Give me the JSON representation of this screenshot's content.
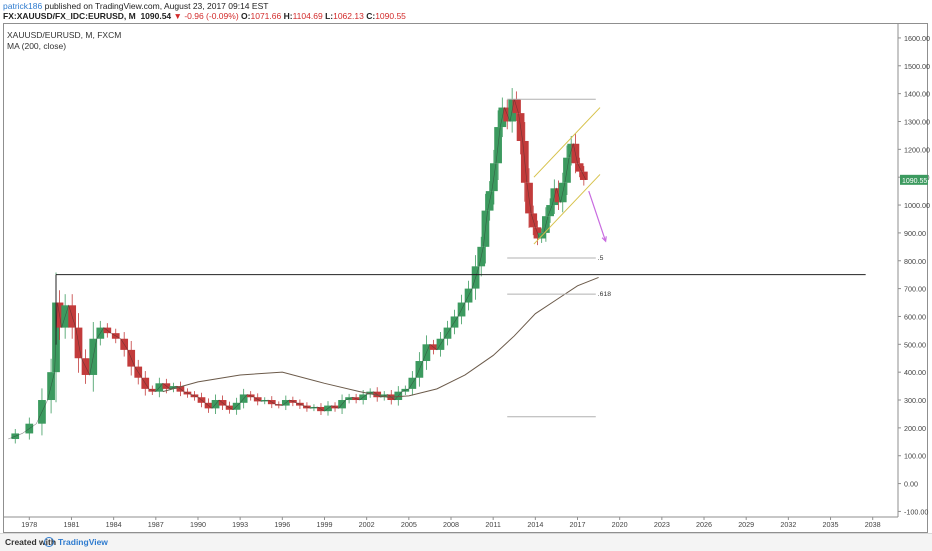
{
  "header": {
    "user": "patrick186",
    "published_text": "published on TradingView.com, August 23, 2017 09:14 EST",
    "symbol_line": "FX:XAUUSD/FX_IDC:EURUSD, M",
    "last": "1090.54",
    "change": "▼ -0.96 (-0.09%)",
    "open_label": "O:",
    "open": "1071.66",
    "high_label": "H:",
    "high": "1104.69",
    "low_label": "L:",
    "low": "1062.13",
    "close_label": "C:",
    "close": "1090.55"
  },
  "legend": {
    "symbol": "XAUUSD/EURUSD, M, FXCM",
    "indicator": "MA (200, close)"
  },
  "footer": {
    "created_with": "Created with",
    "brand": "TradingView"
  },
  "colors": {
    "up": "#3c9a5f",
    "down": "#c23b3b",
    "ma": "#6b5a4a",
    "channel": "#d7c24a",
    "arrow": "#c86be0",
    "level": "#b0b0b0",
    "price_badge": "#3c9a5f"
  },
  "chart_data": {
    "type": "candlestick",
    "x_tick_labels": [
      "1978",
      "1981",
      "1984",
      "1987",
      "1990",
      "1993",
      "1996",
      "1999",
      "2002",
      "2005",
      "2008",
      "2011",
      "2014",
      "2017",
      "2020",
      "2023",
      "2026",
      "2029",
      "2032",
      "2035",
      "2038"
    ],
    "y_tick_labels": [
      "1600.00",
      "1500.00",
      "1400.00",
      "1300.00",
      "1200.00",
      "1100.00",
      "1000.00",
      "900.00",
      "800.00",
      "700.00",
      "600.00",
      "500.00",
      "400.00",
      "300.00",
      "200.00",
      "100.00",
      "0.00",
      "-100.00"
    ],
    "xlim": [
      1976.2,
      2039.8
    ],
    "ylim": [
      -120,
      1650
    ],
    "current_price": "1090.55",
    "price_path": [
      [
        1976.5,
        160
      ],
      [
        1977.5,
        180
      ],
      [
        1978.5,
        215
      ],
      [
        1979.3,
        300
      ],
      [
        1979.8,
        400
      ],
      [
        1980.0,
        650
      ],
      [
        1980.3,
        560
      ],
      [
        1980.8,
        640
      ],
      [
        1981.3,
        560
      ],
      [
        1981.7,
        450
      ],
      [
        1982.3,
        390
      ],
      [
        1982.8,
        520
      ],
      [
        1983.3,
        560
      ],
      [
        1983.8,
        540
      ],
      [
        1984.5,
        520
      ],
      [
        1985.0,
        480
      ],
      [
        1985.5,
        420
      ],
      [
        1986.0,
        380
      ],
      [
        1986.5,
        340
      ],
      [
        1987.0,
        330
      ],
      [
        1987.5,
        360
      ],
      [
        1988.0,
        340
      ],
      [
        1988.5,
        350
      ],
      [
        1989.0,
        330
      ],
      [
        1989.5,
        320
      ],
      [
        1990.0,
        310
      ],
      [
        1990.5,
        290
      ],
      [
        1991.0,
        270
      ],
      [
        1991.5,
        300
      ],
      [
        1992.0,
        280
      ],
      [
        1992.5,
        265
      ],
      [
        1993.0,
        290
      ],
      [
        1993.5,
        320
      ],
      [
        1994.0,
        310
      ],
      [
        1994.5,
        295
      ],
      [
        1995.0,
        300
      ],
      [
        1995.5,
        285
      ],
      [
        1996.0,
        280
      ],
      [
        1996.5,
        300
      ],
      [
        1997.0,
        290
      ],
      [
        1997.5,
        280
      ],
      [
        1998.0,
        270
      ],
      [
        1998.5,
        275
      ],
      [
        1999.0,
        260
      ],
      [
        1999.5,
        280
      ],
      [
        2000.0,
        270
      ],
      [
        2000.5,
        300
      ],
      [
        2001.0,
        310
      ],
      [
        2001.5,
        300
      ],
      [
        2002.0,
        320
      ],
      [
        2002.5,
        330
      ],
      [
        2003.0,
        310
      ],
      [
        2003.5,
        320
      ],
      [
        2004.0,
        300
      ],
      [
        2004.5,
        330
      ],
      [
        2005.0,
        340
      ],
      [
        2005.5,
        380
      ],
      [
        2006.0,
        440
      ],
      [
        2006.5,
        500
      ],
      [
        2007.0,
        480
      ],
      [
        2007.5,
        520
      ],
      [
        2008.0,
        560
      ],
      [
        2008.5,
        600
      ],
      [
        2009.0,
        650
      ],
      [
        2009.5,
        700
      ],
      [
        2010.0,
        780
      ],
      [
        2010.3,
        850
      ],
      [
        2010.6,
        980
      ],
      [
        2010.9,
        1050
      ],
      [
        2011.2,
        1150
      ],
      [
        2011.5,
        1280
      ],
      [
        2011.8,
        1350
      ],
      [
        2012.2,
        1300
      ],
      [
        2012.5,
        1380
      ],
      [
        2012.8,
        1330
      ],
      [
        2013.1,
        1230
      ],
      [
        2013.4,
        1080
      ],
      [
        2013.7,
        970
      ],
      [
        2014.0,
        920
      ],
      [
        2014.3,
        880
      ],
      [
        2014.6,
        900
      ],
      [
        2014.9,
        960
      ],
      [
        2015.2,
        1000
      ],
      [
        2015.5,
        1060
      ],
      [
        2015.8,
        1010
      ],
      [
        2016.1,
        1080
      ],
      [
        2016.4,
        1170
      ],
      [
        2016.7,
        1220
      ],
      [
        2017.0,
        1150
      ],
      [
        2017.3,
        1120
      ],
      [
        2017.6,
        1090
      ]
    ],
    "ma_path": [
      [
        1987.5,
        330
      ],
      [
        1990.0,
        365
      ],
      [
        1993.0,
        390
      ],
      [
        1996.0,
        400
      ],
      [
        1999.0,
        360
      ],
      [
        2001.5,
        330
      ],
      [
        2003.5,
        310
      ],
      [
        2005.0,
        315
      ],
      [
        2007.0,
        340
      ],
      [
        2009.0,
        390
      ],
      [
        2011.0,
        460
      ],
      [
        2012.5,
        530
      ],
      [
        2014.0,
        610
      ],
      [
        2015.5,
        660
      ],
      [
        2017.0,
        710
      ],
      [
        2018.5,
        740
      ]
    ],
    "horizontal_level": {
      "y": 750,
      "x_from": 1979.9,
      "x_to": 2037.5
    },
    "fib_levels": [
      {
        "y": 1380,
        "x_from": 2012.0,
        "x_to": 2018.3,
        "label": ""
      },
      {
        "y": 810,
        "x_from": 2012.0,
        "x_to": 2018.3,
        "label": ".5"
      },
      {
        "y": 680,
        "x_from": 2012.0,
        "x_to": 2018.3,
        "label": ".618"
      },
      {
        "y": 240,
        "x_from": 2012.0,
        "x_to": 2018.3,
        "label": ""
      }
    ],
    "channel_upper": [
      [
        2013.9,
        1100
      ],
      [
        2018.6,
        1350
      ]
    ],
    "channel_lower": [
      [
        2013.9,
        860
      ],
      [
        2018.6,
        1110
      ]
    ],
    "arrow": {
      "from": [
        2017.8,
        1050
      ],
      "to": [
        2019.0,
        870
      ]
    }
  }
}
